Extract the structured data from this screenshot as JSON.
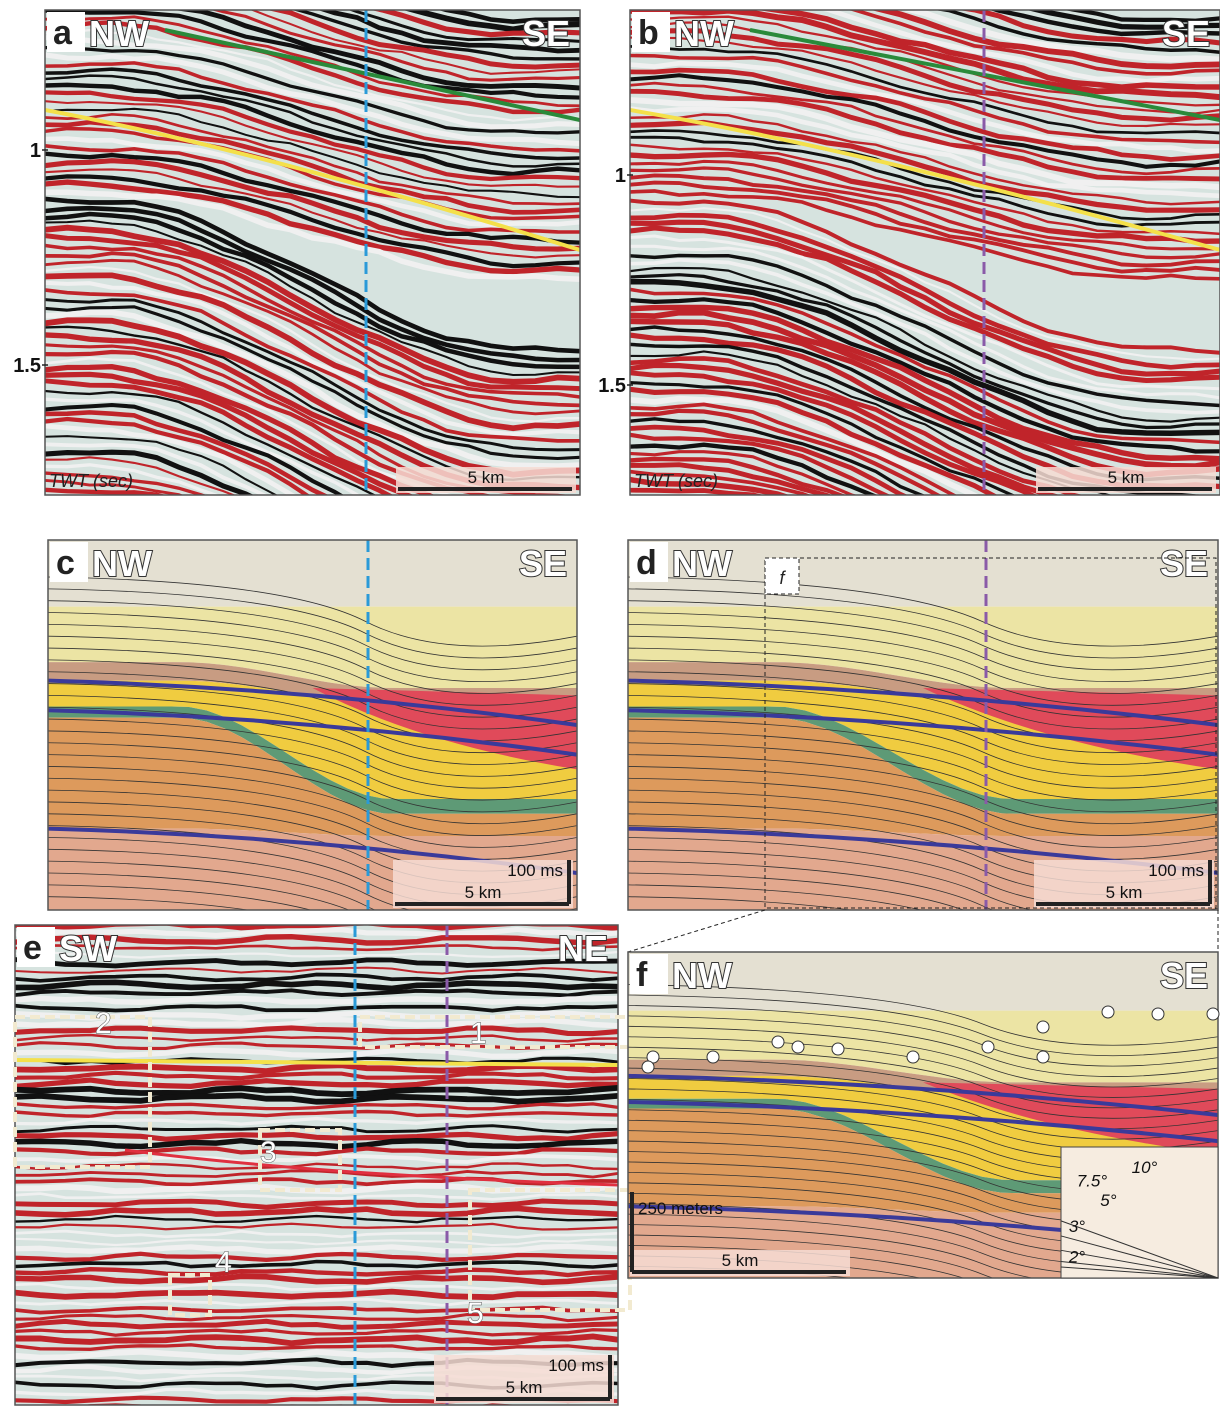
{
  "panels": [
    {
      "label": "a",
      "left": "NW",
      "right": "SE",
      "axis_title": "TWT (sec)",
      "ticks": [
        "1",
        "1.5"
      ],
      "scale_bar": "5 km"
    },
    {
      "label": "b",
      "left": "NW",
      "right": "SE",
      "axis_title": "TWT (sec)",
      "ticks": [
        "1",
        "1.5"
      ],
      "scale_bar": "5 km"
    },
    {
      "label": "c",
      "left": "NW",
      "right": "SE",
      "time_bar": "100 ms",
      "scale_bar": "5 km"
    },
    {
      "label": "d",
      "left": "NW",
      "right": "SE",
      "time_bar": "100 ms",
      "scale_bar": "5 km",
      "inset_label": "f"
    },
    {
      "label": "e",
      "left": "SW",
      "right": "NE",
      "time_bar": "100 ms",
      "scale_bar": "5 km",
      "boxes": [
        "1",
        "2",
        "3",
        "4",
        "5"
      ]
    },
    {
      "label": "f",
      "left": "NW",
      "right": "SE",
      "vertical_bar": "250 meters",
      "scale_bar": "5 km",
      "angles": [
        "10°",
        "7.5°",
        "5°",
        "3°",
        "2°"
      ]
    }
  ]
}
